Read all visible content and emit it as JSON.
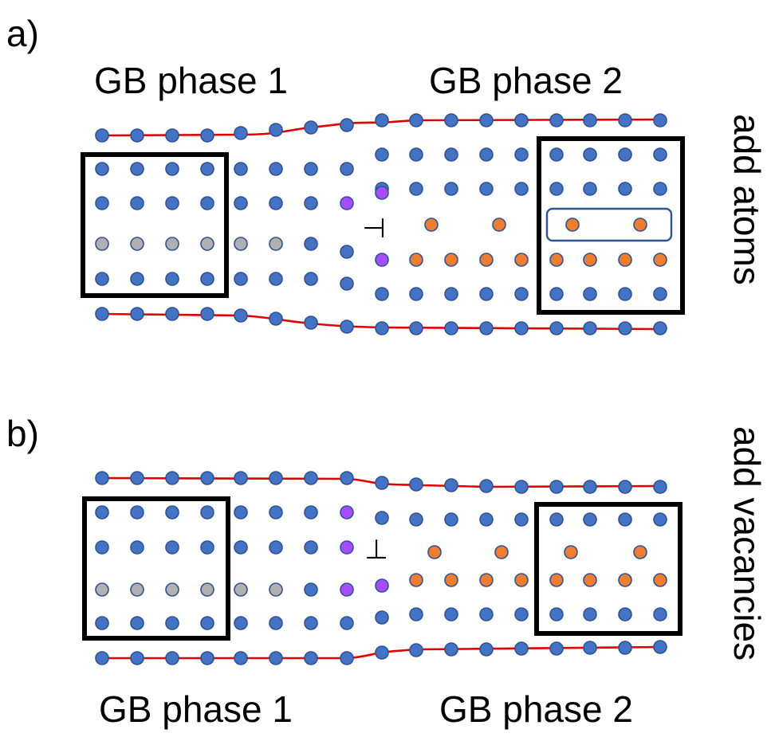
{
  "panel_a": {
    "tag": "a)",
    "left_title": "GB phase 1",
    "right_title": "GB phase 2",
    "side_label": "add atoms"
  },
  "panel_b": {
    "tag": "b)",
    "left_title": "GB phase 1",
    "right_title": "GB phase 2",
    "side_label": "add vacancies"
  },
  "dislocation_symbol": "⊥",
  "colors": {
    "atom_blue": "#4472c4",
    "atom_edge": "#2f528f",
    "atom_gray": "#b0b0b0",
    "atom_orange": "#ed7d31",
    "atom_purple": "#a64dff",
    "boundary_line": "#e00000",
    "box": "#000000"
  }
}
